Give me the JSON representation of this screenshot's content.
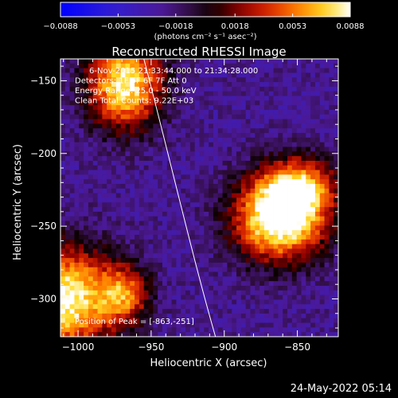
{
  "chart_data": {
    "type": "heatmap",
    "title": "Reconstructed RHESSI Image",
    "xlabel": "Heliocentric X (arcsec)",
    "ylabel": "Heliocentric Y (arcsec)",
    "xlim": [
      -1012,
      -822
    ],
    "ylim": [
      -326,
      -135
    ],
    "x_ticks": [
      -1000,
      -950,
      -900,
      -850
    ],
    "y_ticks": [
      -150,
      -200,
      -250,
      -300
    ],
    "x_tick_labels": [
      "−1000",
      "−950",
      "−900",
      "−850"
    ],
    "y_tick_labels": [
      "−150",
      "−200",
      "−250",
      "−300"
    ],
    "colorbar": {
      "min": -0.0088,
      "max": 0.0088,
      "ticks": [
        -0.0088,
        -0.0053,
        -0.0018,
        0.0018,
        0.0053,
        0.0088
      ],
      "tick_labels": [
        "−0.0088",
        "−0.0053",
        "−0.0018",
        "0.0018",
        "0.0053",
        "0.0088"
      ],
      "unit_label": "(photons cm⁻² s⁻¹ asec⁻²)"
    },
    "annotations": [
      "6-Nov-2015 21:33:44.000 to 21:34:28.000",
      "Detectors: 1F 5F 6F 7F Att 0",
      "Energy Range: 25.0 - 50.0 keV",
      "Clean     Total Counts: 9.22E+03"
    ],
    "peak_label": "Position of Peak = [-863,-251]",
    "peak": [
      -863,
      -251
    ],
    "sources": [
      {
        "x": -862,
        "y": -245,
        "amp": 1.0,
        "sx": 22,
        "sy": 20
      },
      {
        "x": -848,
        "y": -222,
        "amp": 0.55,
        "sx": 18,
        "sy": 14
      },
      {
        "x": -968,
        "y": -152,
        "amp": 0.85,
        "sx": 18,
        "sy": 22
      },
      {
        "x": -1010,
        "y": -300,
        "amp": 0.9,
        "sx": 25,
        "sy": 25
      },
      {
        "x": -968,
        "y": -297,
        "amp": 0.5,
        "sx": 12,
        "sy": 14
      }
    ],
    "background_level": -0.3,
    "limb_curve": [
      [
        -955,
        -135
      ],
      [
        -938,
        -200
      ],
      [
        -922,
        -270
      ],
      [
        -906,
        -326
      ]
    ]
  },
  "footer": {
    "date": "24-May-2022 05:14"
  }
}
